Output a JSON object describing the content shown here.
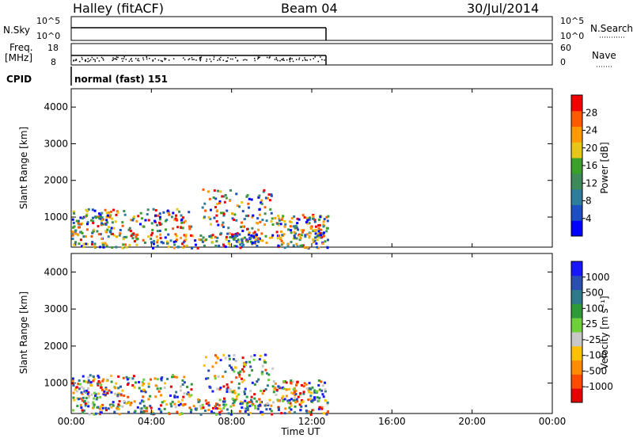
{
  "header": {
    "station": "Halley (fitACF)",
    "beam": "Beam 04",
    "date": "30/Jul/2014"
  },
  "top_panels": {
    "nsky_label": "N.Sky",
    "nsky_ticks": [
      "10^5",
      "10^0"
    ],
    "nsearch_label": "N.Search",
    "nsearch_ticks": [
      "10^5",
      "10^0"
    ],
    "freq_label": "Freq.",
    "freq_unit": "[MHz]",
    "freq_ticks": [
      "18",
      "8"
    ],
    "nave_label": "Nave",
    "nave_ticks": [
      "60",
      "0"
    ],
    "cpid_label": "CPID",
    "cpid_value": "normal (fast) 151"
  },
  "colors": {
    "power": [
      "#0000ff",
      "#1e4fc2",
      "#2e7d9a",
      "#3e8a5a",
      "#3aa02a",
      "#e6c617",
      "#ff9a00",
      "#ff5a00",
      "#f50000"
    ],
    "velocity": [
      "#e60000",
      "#ff4a00",
      "#ff8c00",
      "#ffc000",
      "#c8c8c8",
      "#6fd13a",
      "#2f9a3a",
      "#2f7a8a",
      "#2a4fb0",
      "#1818ff"
    ]
  },
  "chart_data": [
    {
      "type": "heatmap",
      "name": "power-panel",
      "ylabel": "Slant Range [km]",
      "yticks": [
        "4000",
        "3000",
        "2000",
        "1000"
      ],
      "ylim": [
        180,
        4500
      ],
      "xlim": [
        0,
        24
      ],
      "colorbar_label": "Power [dB]",
      "colorbar_ticks": [
        "28",
        "24",
        "20",
        "16",
        "12",
        "8",
        "4"
      ],
      "colorbar_range": [
        0,
        32
      ]
    },
    {
      "type": "heatmap",
      "name": "velocity-panel",
      "ylabel": "Slant Range [km]",
      "yticks": [
        "4000",
        "3000",
        "2000",
        "1000"
      ],
      "ylim": [
        180,
        4500
      ],
      "xlim": [
        0,
        24
      ],
      "colorbar_label": "Velocity [m s⁻¹]",
      "colorbar_ticks": [
        "1000",
        "500",
        "100",
        "25",
        "-25",
        "-100",
        "-500",
        "-1000"
      ]
    }
  ],
  "x_axis": {
    "label": "Time UT",
    "ticks": [
      "00:00",
      "04:00",
      "08:00",
      "12:00",
      "16:00",
      "20:00",
      "00:00"
    ]
  }
}
